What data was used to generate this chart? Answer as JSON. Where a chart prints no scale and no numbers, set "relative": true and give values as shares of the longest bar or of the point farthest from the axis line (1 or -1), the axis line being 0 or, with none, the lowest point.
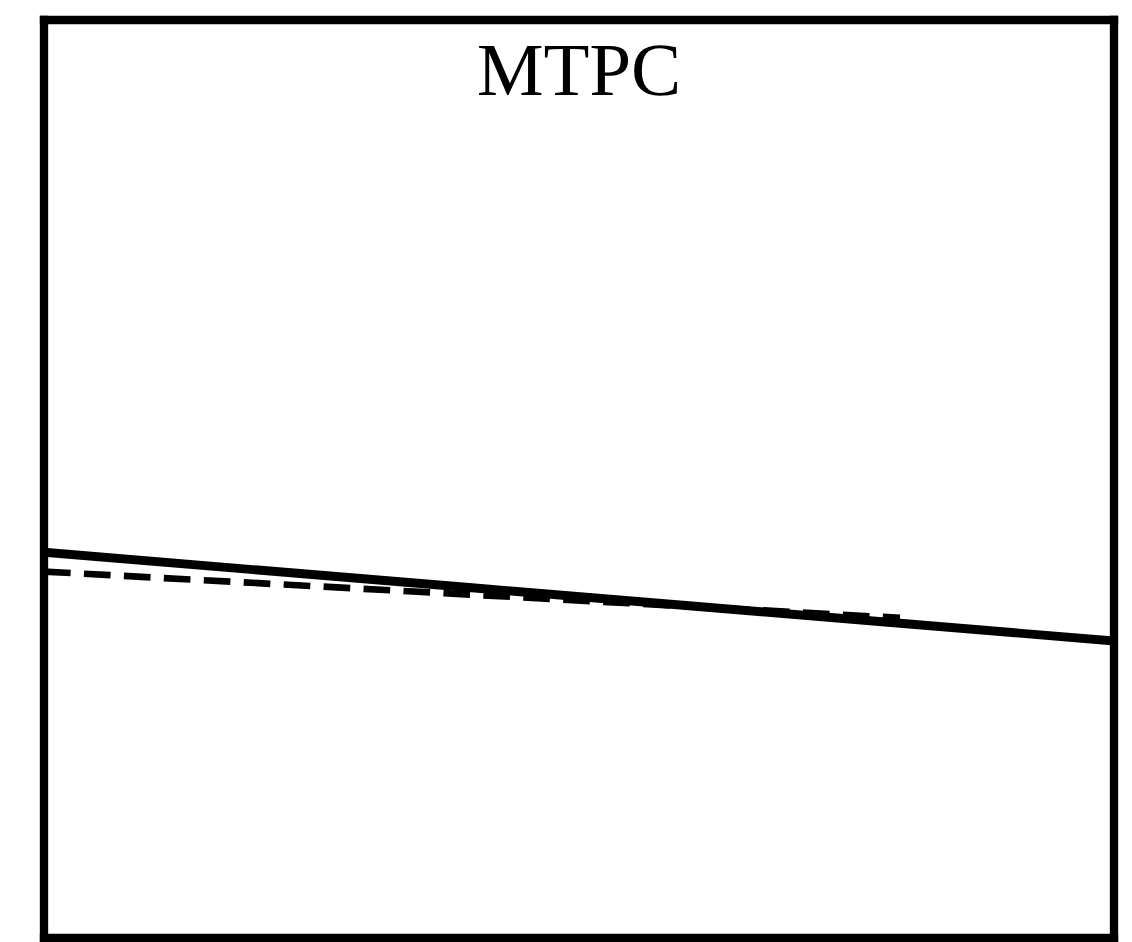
{
  "chart_data": {
    "type": "line",
    "title": "MTPC",
    "relative": true,
    "categories": [
      null,
      null,
      null,
      null,
      null,
      null
    ],
    "series": [
      {
        "color": "#000000",
        "line_style": "solid",
        "values": [
          1,
          0.954,
          0.908,
          0.862,
          0.816,
          0.77
        ]
      },
      {
        "color": "#000000",
        "line_style": "dashed",
        "values": [
          0.95,
          0.92,
          0.89,
          0.86,
          0.83,
          null
        ]
      }
    ],
    "grid": false,
    "legend": false
  }
}
